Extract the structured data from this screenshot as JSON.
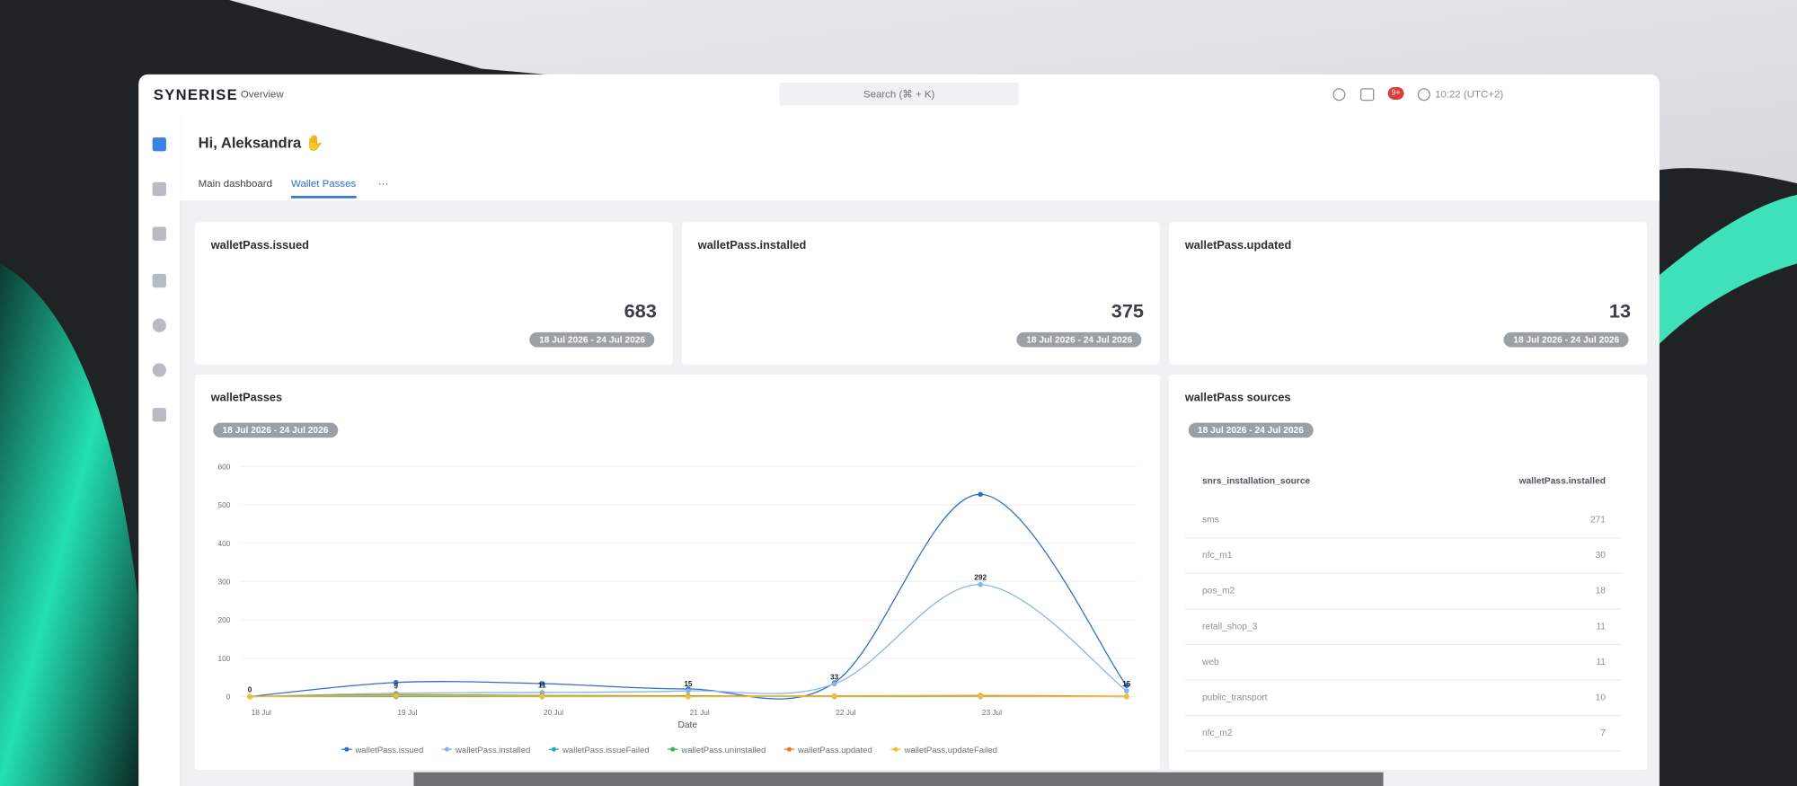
{
  "header": {
    "logo": "SYNERISE",
    "nav": "Overview",
    "search": "Search (⌘ + K)",
    "badge": "9+",
    "time": "10:22 (UTC+2)"
  },
  "greeting": "Hi, Aleksandra ✋",
  "tabs": [
    "Main dashboard",
    "Wallet Passes",
    "···"
  ],
  "kpis": [
    {
      "title": "walletPass.issued",
      "value": 683,
      "date": "18 Jul 2026 - 24 Jul 2026"
    },
    {
      "title": "walletPass.installed",
      "value": 375,
      "date": "18 Jul 2026 - 24 Jul 2026"
    },
    {
      "title": "walletPass.updated",
      "value": 13,
      "date": "18 Jul 2026 - 24 Jul 2026"
    }
  ],
  "chart": {
    "type": "line",
    "title": "walletPasses",
    "date": "18 Jul 2026 - 24 Jul 2026",
    "x_label": "Date",
    "categories": [
      "18 Jul",
      "19 Jul",
      "20 Jul",
      "21 Jul",
      "22 Jul",
      "23 Jul",
      null
    ],
    "ylim": [
      0,
      600
    ],
    "yticks": [
      0,
      100,
      200,
      300,
      400,
      500,
      600
    ],
    "grid": true,
    "series": [
      {
        "name": "walletPass.issued",
        "color": "#2f6fc9",
        "values": [
          0,
          37,
          34,
          20,
          36,
          527,
          29
        ]
      },
      {
        "name": "walletPass.installed",
        "color": "#8ab4e8",
        "values": [
          0,
          9,
          11,
          15,
          33,
          292,
          15
        ],
        "labels": true
      },
      {
        "name": "walletPass.issueFailed",
        "color": "#21b3b3",
        "values": [
          0,
          0,
          0,
          0,
          0,
          0,
          0
        ]
      },
      {
        "name": "walletPass.uninstalled",
        "color": "#35b84a",
        "values": [
          0,
          5,
          3,
          2,
          1,
          2,
          0
        ]
      },
      {
        "name": "walletPass.updated",
        "color": "#e8772e",
        "values": [
          0,
          4,
          2,
          1,
          2,
          3,
          1
        ]
      },
      {
        "name": "walletPass.updateFailed",
        "color": "#f2c12e",
        "values": [
          0,
          2,
          1,
          0,
          1,
          1,
          0
        ]
      }
    ]
  },
  "sources": {
    "title": "walletPass sources",
    "date": "18 Jul 2026 - 24 Jul 2026",
    "columns": [
      "snrs_installation_source",
      "walletPass.installed"
    ],
    "rows": [
      [
        "sms",
        271
      ],
      [
        "nfc_m1",
        30
      ],
      [
        "pos_m2",
        18
      ],
      [
        "retail_shop_3",
        11
      ],
      [
        "web",
        11
      ],
      [
        "public_transport",
        10
      ],
      [
        "nfc_m2",
        7
      ]
    ]
  }
}
